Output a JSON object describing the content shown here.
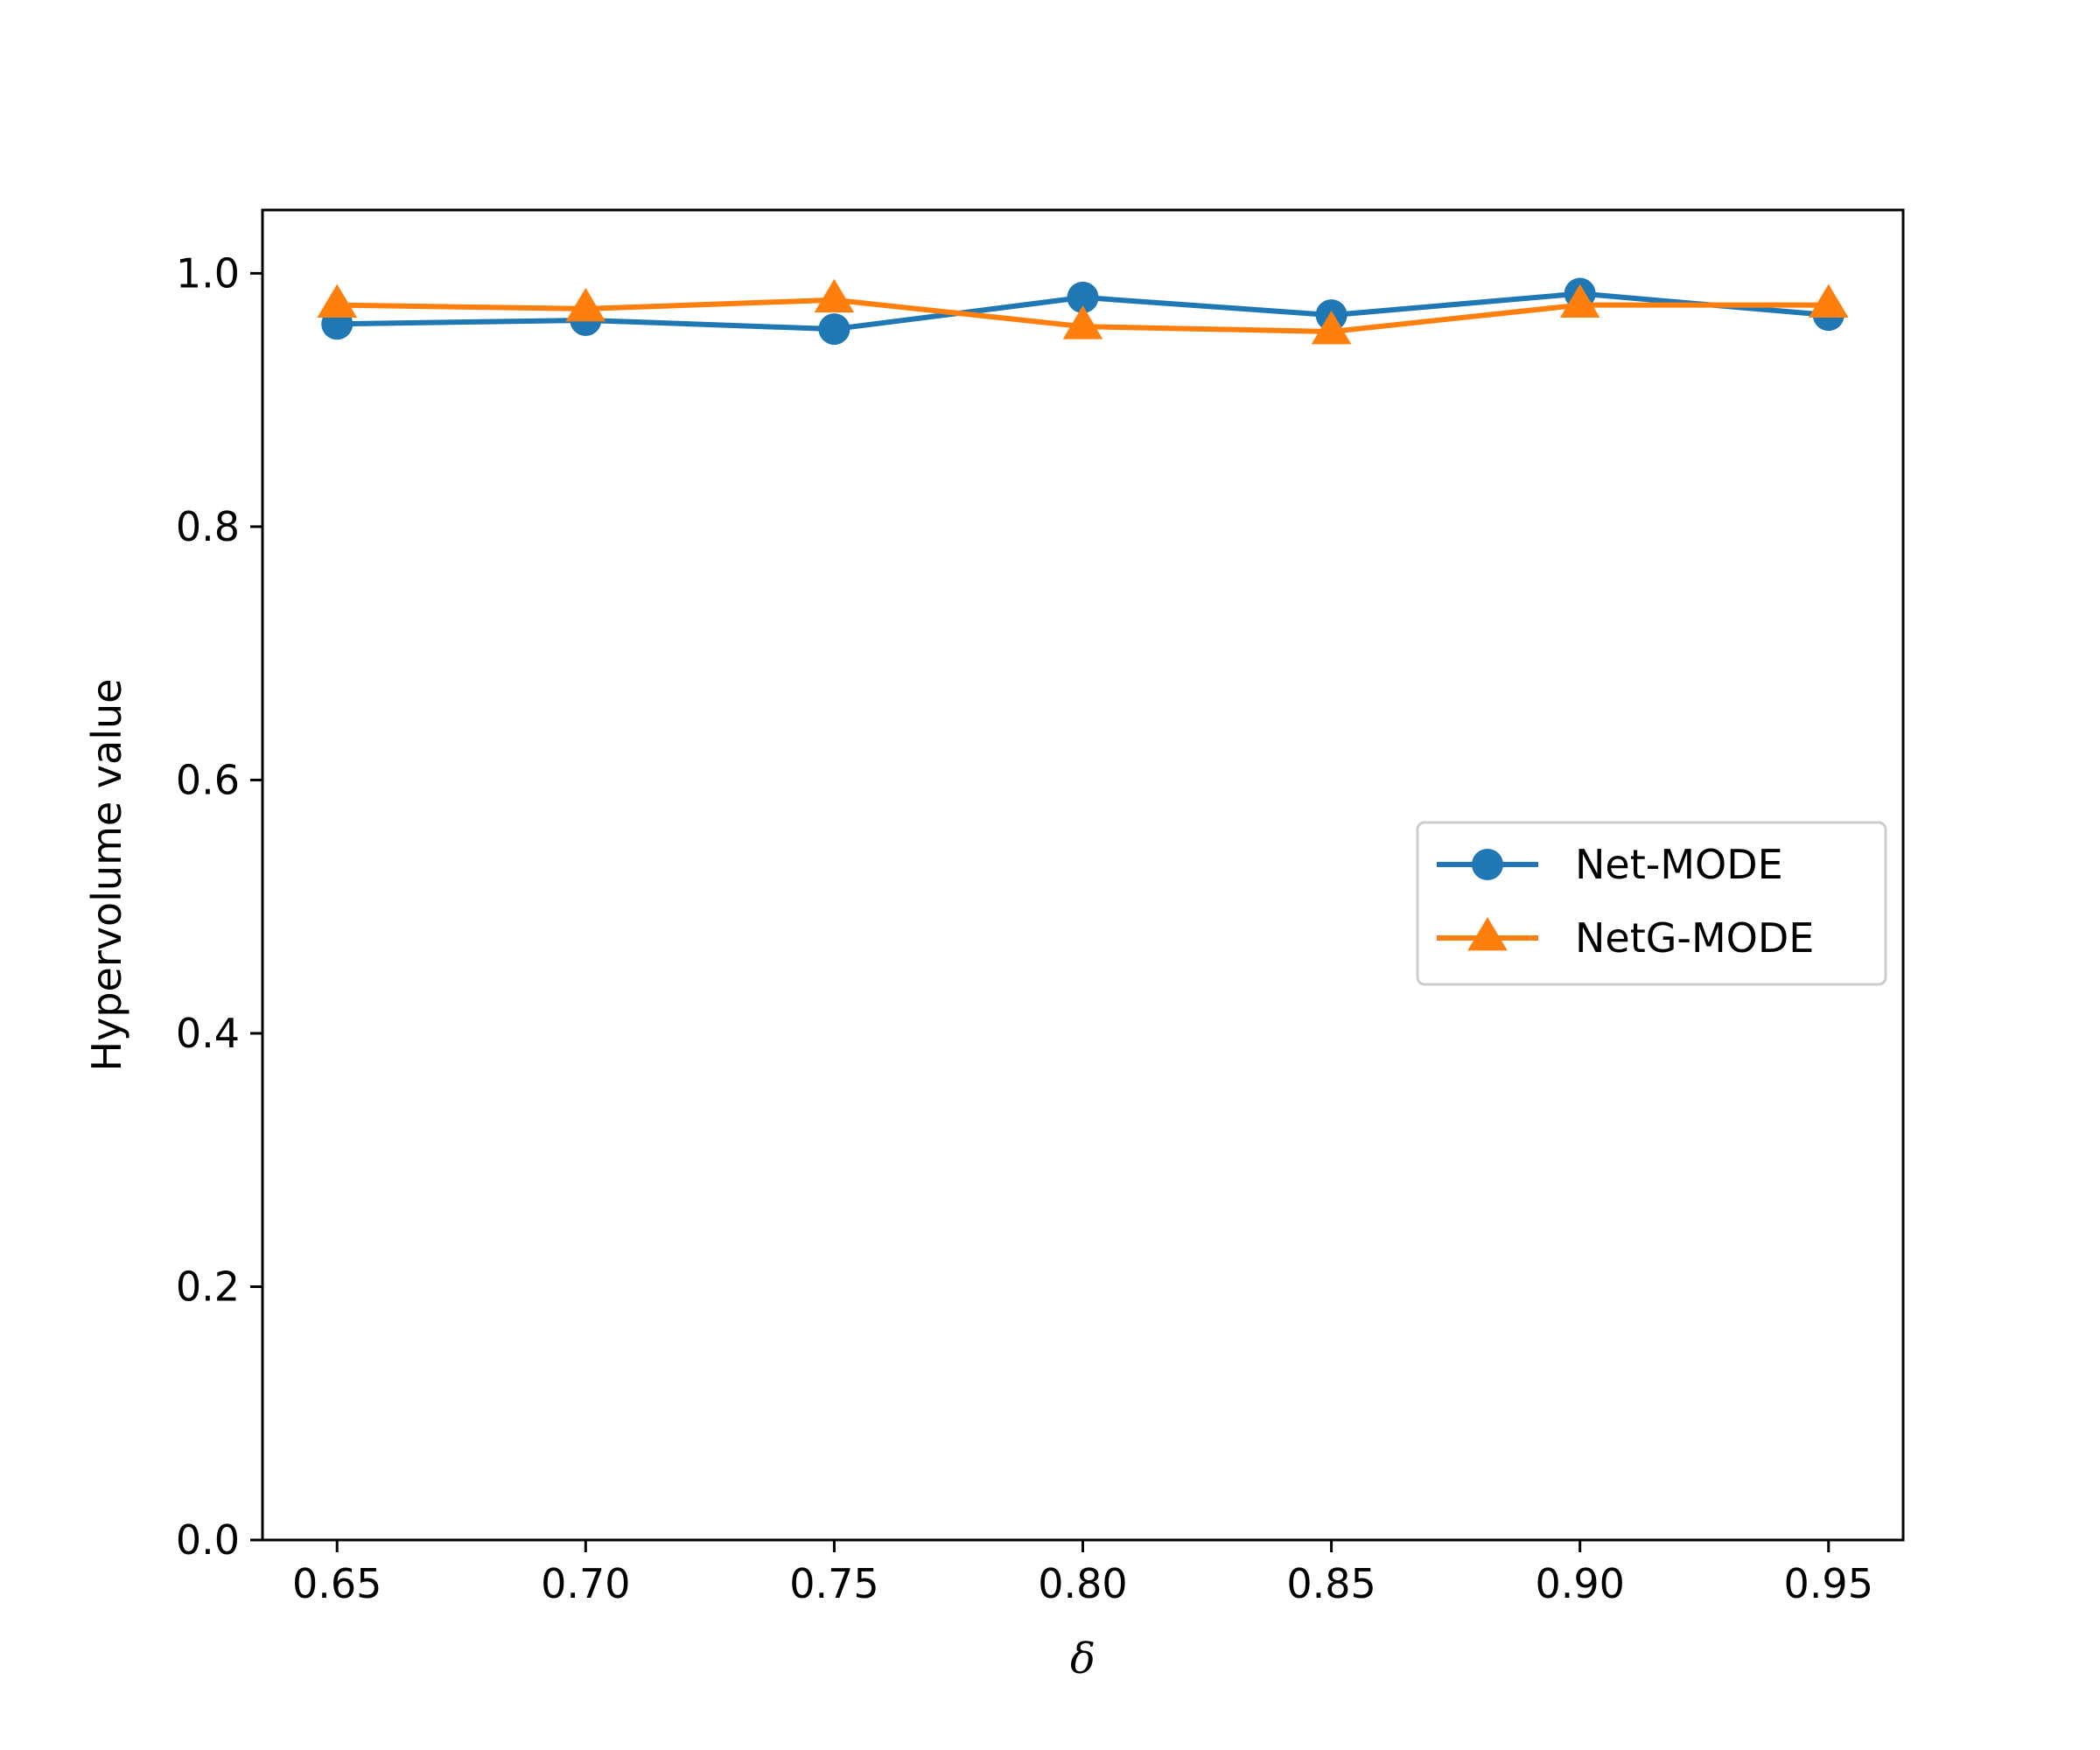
{
  "chart_data": {
    "type": "line",
    "title": "",
    "xlabel": "δ",
    "ylabel": "Hypervolume value",
    "x": [
      0.65,
      0.7,
      0.75,
      0.8,
      0.85,
      0.9,
      0.95
    ],
    "x_tick_labels": [
      "0.65",
      "0.70",
      "0.75",
      "0.80",
      "0.85",
      "0.90",
      "0.95"
    ],
    "y_ticks": [
      0.0,
      0.2,
      0.4,
      0.6,
      0.8,
      1.0
    ],
    "y_tick_labels": [
      "0.0",
      "0.2",
      "0.4",
      "0.6",
      "0.8",
      "1.0"
    ],
    "xlim": [
      0.635,
      0.965
    ],
    "ylim": [
      0.0,
      1.05
    ],
    "grid": false,
    "legend_position": "center-right",
    "series": [
      {
        "name": "Net-MODE",
        "values": [
          0.96,
          0.963,
          0.956,
          0.981,
          0.967,
          0.984,
          0.967
        ],
        "color": "#1f77b4",
        "marker": "circle"
      },
      {
        "name": "NetG-MODE",
        "values": [
          0.975,
          0.972,
          0.979,
          0.958,
          0.954,
          0.975,
          0.975
        ],
        "color": "#ff7f0e",
        "marker": "triangle"
      }
    ]
  }
}
